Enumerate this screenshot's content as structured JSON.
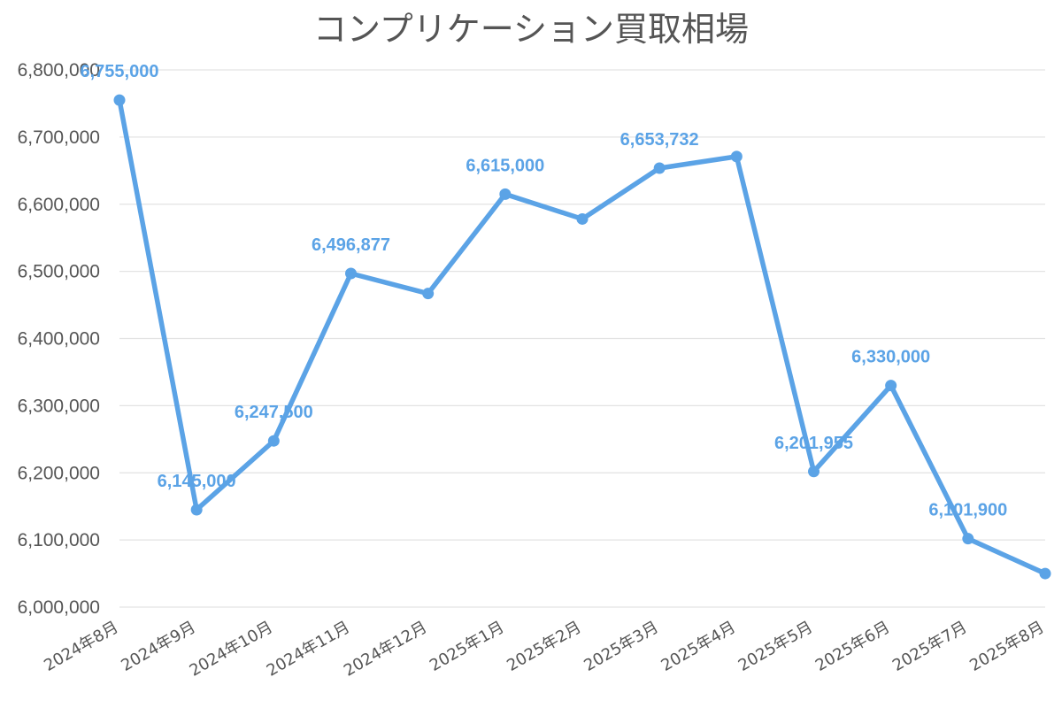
{
  "chart_data": {
    "type": "line",
    "title": "コンプリケーション買取相場",
    "xlabel": "",
    "ylabel": "",
    "categories": [
      "2024年8月",
      "2024年9月",
      "2024年10月",
      "2024年11月",
      "2024年12月",
      "2025年1月",
      "2025年2月",
      "2025年3月",
      "2025年4月",
      "2025年5月",
      "2025年6月",
      "2025年7月",
      "2025年8月"
    ],
    "series": [
      {
        "values": [
          6755000,
          6145000,
          6247500,
          6496877,
          6467000,
          6615000,
          6578000,
          6653732,
          6671000,
          6201955,
          6330000,
          6101900,
          6050000
        ],
        "data_labels": [
          "6,755,000",
          "6,145,000",
          "6,247,500",
          "6,496,877",
          "",
          "6,615,000",
          "",
          "6,653,732",
          "",
          "6,201,955",
          "6,330,000",
          "6,101,900",
          ""
        ]
      }
    ],
    "ylim": [
      6000000,
      6800000
    ],
    "yticks": [
      "6,000,000",
      "6,100,000",
      "6,200,000",
      "6,300,000",
      "6,400,000",
      "6,500,000",
      "6,600,000",
      "6,700,000",
      "6,800,000"
    ],
    "grid": true,
    "color": "#5ba3e6"
  }
}
